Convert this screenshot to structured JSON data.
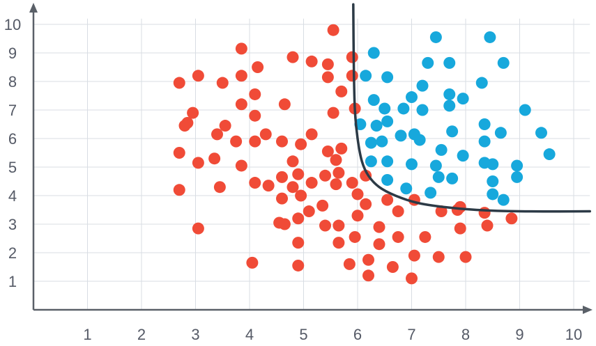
{
  "chart_data": {
    "type": "scatter",
    "title": "",
    "xlabel": "",
    "ylabel": "",
    "xlim": [
      0,
      10.3
    ],
    "ylim": [
      0,
      10.2
    ],
    "x_ticks": [
      "1",
      "2",
      "3",
      "4",
      "5",
      "6",
      "7",
      "8",
      "9",
      "10"
    ],
    "y_ticks": [
      "1",
      "2",
      "3",
      "4",
      "5",
      "6",
      "7",
      "8",
      "9",
      "10"
    ],
    "grid": true,
    "colors": {
      "class_a": "#f04b37",
      "class_b": "#17a8dc",
      "boundary": "#2c3a46",
      "grid": "#d8dde3",
      "axis": "#5a6068"
    },
    "series": [
      {
        "points": [
          [
            5.55,
            9.8
          ],
          [
            3.85,
            9.15
          ],
          [
            4.8,
            8.85
          ],
          [
            5.9,
            8.85
          ],
          [
            4.15,
            8.5
          ],
          [
            5.15,
            8.7
          ],
          [
            5.45,
            8.6
          ],
          [
            2.7,
            7.95
          ],
          [
            3.05,
            8.2
          ],
          [
            3.5,
            7.95
          ],
          [
            3.85,
            8.2
          ],
          [
            5.45,
            8.15
          ],
          [
            5.9,
            8.2
          ],
          [
            5.7,
            7.65
          ],
          [
            4.1,
            7.55
          ],
          [
            3.85,
            7.2
          ],
          [
            2.95,
            6.9
          ],
          [
            4.65,
            7.2
          ],
          [
            5.55,
            6.9
          ],
          [
            5.95,
            7.05
          ],
          [
            4.1,
            6.8
          ],
          [
            2.85,
            6.55
          ],
          [
            2.8,
            6.45
          ],
          [
            3.55,
            6.45
          ],
          [
            3.4,
            6.15
          ],
          [
            3.75,
            5.9
          ],
          [
            4.3,
            6.15
          ],
          [
            4.1,
            5.9
          ],
          [
            4.6,
            5.9
          ],
          [
            4.95,
            5.8
          ],
          [
            5.15,
            6.15
          ],
          [
            2.7,
            5.5
          ],
          [
            3.35,
            5.3
          ],
          [
            3.05,
            5.15
          ],
          [
            3.85,
            5.05
          ],
          [
            4.8,
            5.2
          ],
          [
            5.45,
            5.55
          ],
          [
            5.7,
            5.65
          ],
          [
            5.6,
            5.25
          ],
          [
            5.65,
            4.8
          ],
          [
            5.4,
            4.7
          ],
          [
            4.9,
            4.75
          ],
          [
            4.6,
            4.65
          ],
          [
            4.1,
            4.45
          ],
          [
            4.35,
            4.35
          ],
          [
            3.45,
            4.3
          ],
          [
            2.7,
            4.2
          ],
          [
            4.8,
            4.3
          ],
          [
            4.95,
            4.0
          ],
          [
            4.6,
            3.9
          ],
          [
            5.15,
            4.45
          ],
          [
            5.6,
            4.4
          ],
          [
            5.9,
            4.45
          ],
          [
            6.15,
            4.7
          ],
          [
            6.0,
            4.05
          ],
          [
            6.15,
            3.7
          ],
          [
            5.35,
            3.65
          ],
          [
            5.1,
            3.45
          ],
          [
            4.9,
            3.2
          ],
          [
            4.55,
            3.05
          ],
          [
            4.65,
            3.0
          ],
          [
            5.4,
            2.95
          ],
          [
            5.65,
            2.95
          ],
          [
            6.0,
            3.3
          ],
          [
            6.55,
            3.85
          ],
          [
            6.75,
            3.45
          ],
          [
            7.05,
            3.85
          ],
          [
            7.55,
            3.45
          ],
          [
            7.85,
            3.5
          ],
          [
            7.9,
            3.6
          ],
          [
            8.35,
            3.4
          ],
          [
            8.4,
            2.95
          ],
          [
            8.85,
            3.2
          ],
          [
            7.9,
            2.85
          ],
          [
            7.25,
            2.55
          ],
          [
            6.75,
            2.55
          ],
          [
            6.4,
            2.9
          ],
          [
            6.4,
            2.3
          ],
          [
            5.95,
            2.55
          ],
          [
            5.65,
            2.35
          ],
          [
            4.9,
            2.35
          ],
          [
            7.05,
            1.9
          ],
          [
            7.5,
            1.85
          ],
          [
            8.0,
            1.85
          ],
          [
            6.65,
            1.5
          ],
          [
            6.2,
            1.75
          ],
          [
            5.85,
            1.6
          ],
          [
            4.9,
            1.55
          ],
          [
            4.05,
            1.65
          ],
          [
            3.05,
            2.85
          ],
          [
            6.2,
            1.2
          ],
          [
            7.0,
            1.1
          ]
        ]
      },
      {
        "points": [
          [
            6.3,
            9.0
          ],
          [
            7.45,
            9.55
          ],
          [
            8.45,
            9.55
          ],
          [
            7.3,
            8.65
          ],
          [
            7.7,
            8.65
          ],
          [
            8.7,
            8.65
          ],
          [
            6.15,
            8.2
          ],
          [
            6.55,
            8.15
          ],
          [
            7.2,
            7.85
          ],
          [
            8.3,
            7.95
          ],
          [
            7.7,
            7.55
          ],
          [
            7.0,
            7.45
          ],
          [
            6.3,
            7.35
          ],
          [
            7.95,
            7.4
          ],
          [
            6.5,
            7.05
          ],
          [
            6.85,
            7.05
          ],
          [
            7.2,
            7.0
          ],
          [
            7.7,
            7.15
          ],
          [
            9.1,
            7.0
          ],
          [
            6.05,
            6.5
          ],
          [
            6.35,
            6.45
          ],
          [
            6.55,
            6.6
          ],
          [
            6.25,
            5.85
          ],
          [
            6.45,
            5.9
          ],
          [
            6.8,
            6.1
          ],
          [
            7.05,
            6.15
          ],
          [
            7.15,
            5.95
          ],
          [
            7.75,
            6.25
          ],
          [
            8.35,
            6.5
          ],
          [
            8.65,
            6.2
          ],
          [
            9.4,
            6.2
          ],
          [
            8.35,
            5.9
          ],
          [
            7.55,
            5.6
          ],
          [
            7.95,
            5.4
          ],
          [
            8.35,
            5.15
          ],
          [
            8.5,
            5.1
          ],
          [
            9.55,
            5.45
          ],
          [
            6.25,
            5.2
          ],
          [
            6.55,
            5.2
          ],
          [
            7.0,
            5.1
          ],
          [
            7.45,
            5.05
          ],
          [
            8.95,
            5.05
          ],
          [
            7.5,
            4.65
          ],
          [
            7.75,
            4.6
          ],
          [
            6.55,
            4.55
          ],
          [
            8.5,
            4.5
          ],
          [
            8.95,
            4.65
          ],
          [
            6.9,
            4.25
          ],
          [
            7.35,
            4.1
          ],
          [
            8.5,
            4.05
          ],
          [
            8.7,
            3.85
          ]
        ]
      }
    ],
    "boundary_curve": [
      [
        5.92,
        10.7
      ],
      [
        5.93,
        8.5
      ],
      [
        5.95,
        7.0
      ],
      [
        6.0,
        6.0
      ],
      [
        6.08,
        5.2
      ],
      [
        6.2,
        4.7
      ],
      [
        6.4,
        4.3
      ],
      [
        6.7,
        4.0
      ],
      [
        7.1,
        3.75
      ],
      [
        7.6,
        3.6
      ],
      [
        8.2,
        3.5
      ],
      [
        9.0,
        3.45
      ],
      [
        10.3,
        3.45
      ]
    ]
  }
}
